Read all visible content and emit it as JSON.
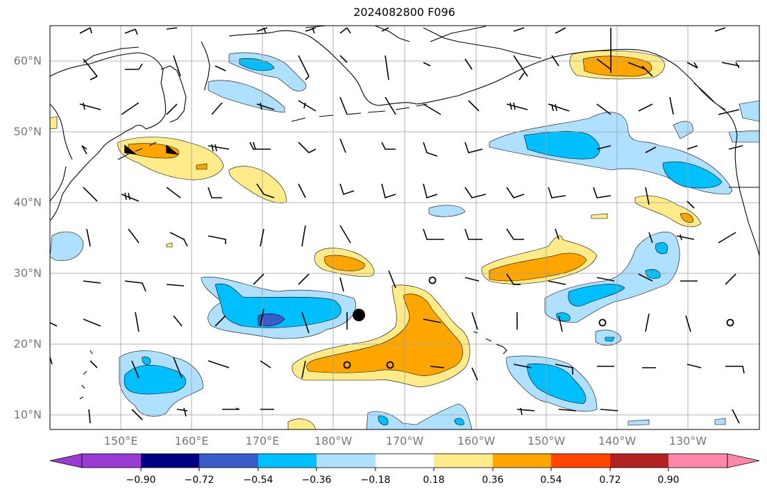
{
  "title": "2024082800 F096",
  "lat_labels": [
    "60°N",
    "50°N",
    "40°N",
    "30°N",
    "20°N",
    "10°N"
  ],
  "lon_labels": [
    "150°E",
    "160°E",
    "170°E",
    "180°W",
    "170°W",
    "160°W",
    "150°W",
    "140°W",
    "130°W"
  ],
  "colorbar": {
    "ticks": [
      "−0.90",
      "−0.72",
      "−0.54",
      "−0.36",
      "−0.18",
      "0.18",
      "0.36",
      "0.54",
      "0.72",
      "0.90"
    ],
    "colors": [
      "#9a3bd3",
      "#000080",
      "#3a5cc8",
      "#00bfff",
      "#b0e0ff",
      "#ffffff",
      "#ffeb8a",
      "#ffa500",
      "#ff4500",
      "#b22222",
      "#ff88aa"
    ]
  },
  "colors": {
    "blue_light": "#b0e0ff",
    "blue": "#00bfff",
    "blue_dark": "#3a5cc8",
    "yellow": "#ffeb8a",
    "orange": "#ffa500",
    "grid": "#9e9e9e",
    "coast": "#000000"
  },
  "features": {
    "tropical_cyclone_marker": {
      "lon": -175.5,
      "lat": 24.2
    }
  }
}
